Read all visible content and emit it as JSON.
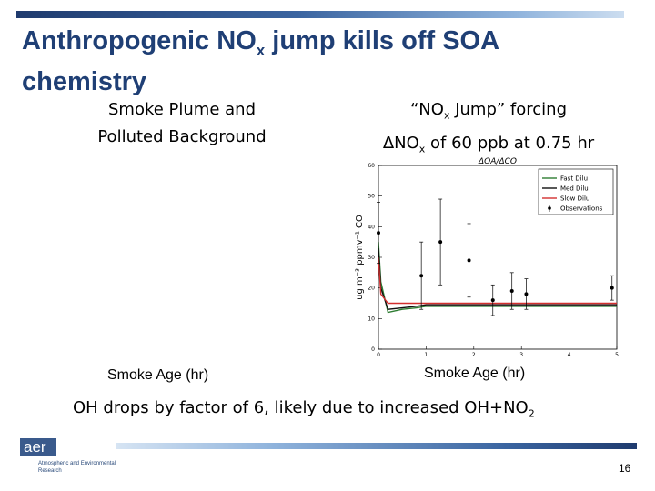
{
  "slide": {
    "title_main": "Anthropogenic NO",
    "title_sub": "x",
    "title_rest": " jump kills off SOA chemistry",
    "left_heading_1": "Smoke Plume and",
    "left_heading_2": "Polluted Background",
    "right_heading_1a": "“NO",
    "right_heading_1sub": "x",
    "right_heading_1b": " Jump” forcing",
    "right_heading_2a": "ΔNO",
    "right_heading_2sub": "x",
    "right_heading_2b": " of 60 ppb at 0.75 hr",
    "left_axis_caption": "Smoke Age (hr)",
    "right_axis_caption": "Smoke Age (hr)",
    "footnote_main": "OH drops by factor of 6, likely due to increased OH+NO",
    "footnote_sub": "2",
    "page_number": "16",
    "logo_text": "aer",
    "logo_subtext": "Atmospheric and Environmental Research",
    "colors": {
      "title": "#1f3f75",
      "bar_dark": "#1f3b6e",
      "bar_light": "#d6e4f3",
      "logo": "#3a5a8c"
    }
  },
  "chart_data": {
    "type": "line",
    "title": "ΔOA/ΔCO",
    "xlabel": "",
    "ylabel": "ug m⁻³ ppmv⁻¹ CO",
    "xlim": [
      0,
      5
    ],
    "ylim": [
      0,
      60
    ],
    "x_ticks": [
      "0",
      "1",
      "2",
      "3",
      "4",
      "5"
    ],
    "y_ticks": [
      "0",
      "10",
      "20",
      "30",
      "40",
      "50",
      "60"
    ],
    "legend_position": "top-right",
    "series": [
      {
        "name": "Fast Dilu",
        "color": "#2e7d32",
        "x": [
          0,
          0.05,
          0.2,
          0.5,
          0.8,
          1.0,
          2.0,
          3.0,
          4.0,
          5.0
        ],
        "y": [
          35,
          22,
          12,
          13,
          13.5,
          14,
          14,
          14,
          14,
          14
        ]
      },
      {
        "name": "Med Dilu",
        "color": "#111111",
        "x": [
          0,
          0.05,
          0.2,
          0.5,
          0.8,
          1.0,
          2.0,
          3.0,
          4.0,
          5.0
        ],
        "y": [
          33,
          20,
          13,
          13.5,
          14,
          14.5,
          14.5,
          14.5,
          14.5,
          14.5
        ]
      },
      {
        "name": "Slow Dilu",
        "color": "#d32f2f",
        "x": [
          0,
          0.05,
          0.2,
          0.5,
          0.8,
          1.0,
          2.0,
          3.0,
          4.0,
          5.0
        ],
        "y": [
          30,
          18,
          15,
          15,
          15,
          15,
          15,
          15,
          15,
          15
        ]
      }
    ],
    "observations": {
      "name": "Observations",
      "color": "#000000",
      "points": [
        {
          "x": 0.0,
          "y": 38,
          "err": 10
        },
        {
          "x": 0.9,
          "y": 24,
          "err": 11
        },
        {
          "x": 1.3,
          "y": 35,
          "err": 14
        },
        {
          "x": 1.9,
          "y": 29,
          "err": 12
        },
        {
          "x": 2.4,
          "y": 16,
          "err": 5
        },
        {
          "x": 2.8,
          "y": 19,
          "err": 6
        },
        {
          "x": 3.1,
          "y": 18,
          "err": 5
        },
        {
          "x": 4.9,
          "y": 20,
          "err": 4
        }
      ]
    }
  }
}
